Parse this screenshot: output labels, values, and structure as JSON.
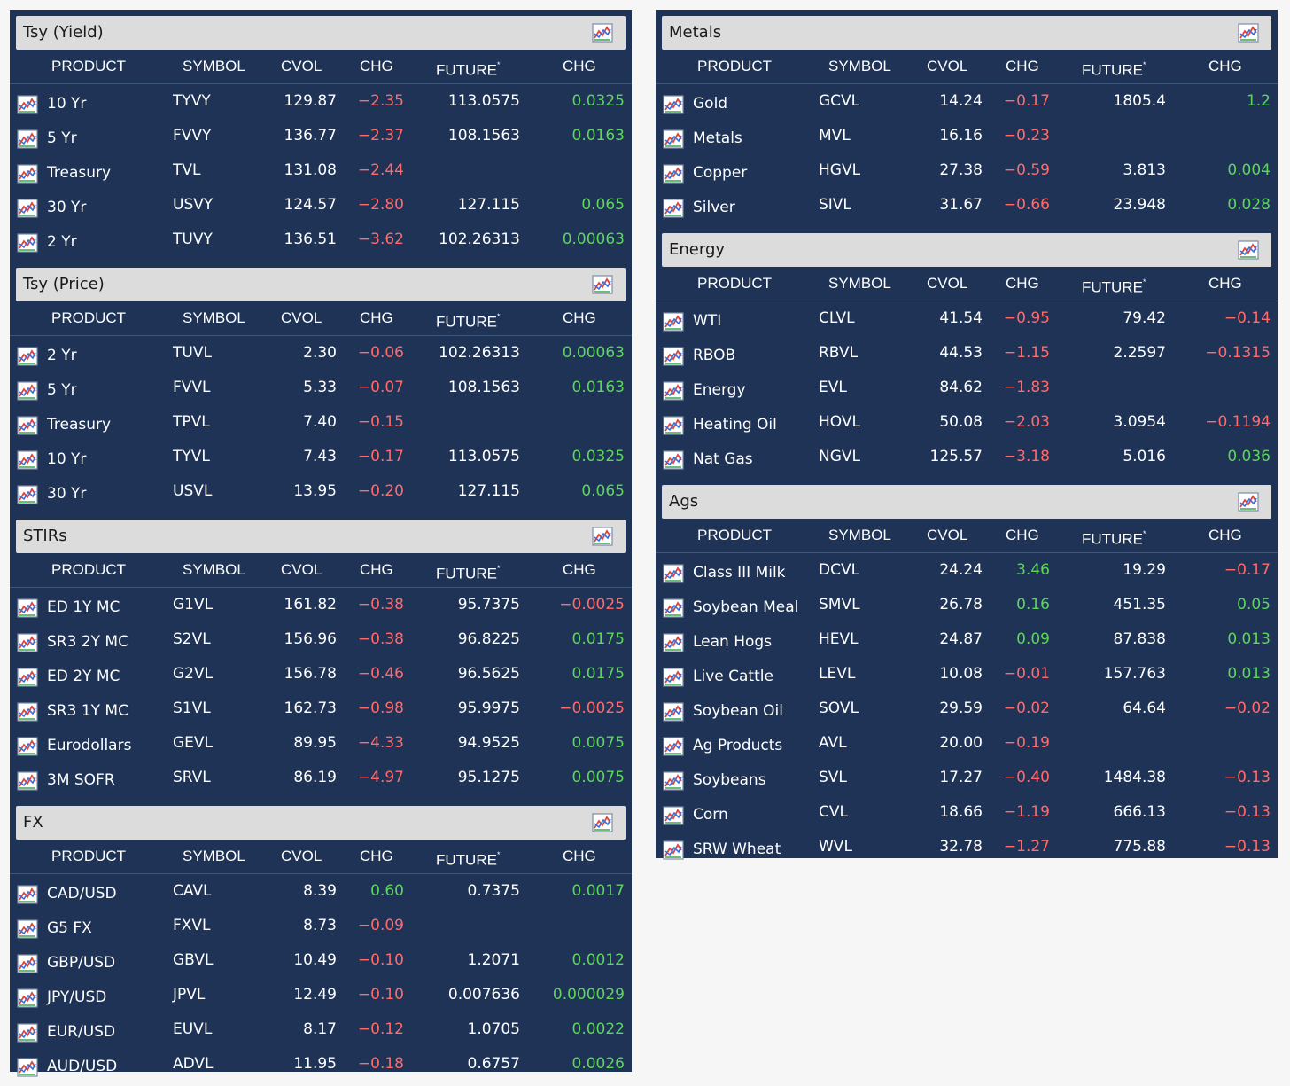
{
  "headers": {
    "product": "PRODUCT",
    "symbol": "SYMBOL",
    "cvol": "CVOL",
    "chg": "CHG",
    "future": "FUTURE",
    "future_mark": "*",
    "future_chg": "CHG"
  },
  "colors": {
    "panel": "#1e3356",
    "negative": "#ff6b6b",
    "positive": "#5fd45f",
    "section_bar": "#dcdcdc"
  },
  "icons": {
    "chart": "chart-icon"
  },
  "left_sections": [
    {
      "title": "Tsy (Yield)",
      "rows": [
        {
          "product": "10 Yr",
          "symbol": "TYVY",
          "cvol": "129.87",
          "chg": "−2.35",
          "future": "113.0575",
          "fchg": "0.0325"
        },
        {
          "product": "5 Yr",
          "symbol": "FVVY",
          "cvol": "136.77",
          "chg": "−2.37",
          "future": "108.1563",
          "fchg": "0.0163"
        },
        {
          "product": "Treasury",
          "symbol": "TVL",
          "cvol": "131.08",
          "chg": "−2.44",
          "future": "",
          "fchg": ""
        },
        {
          "product": "30 Yr",
          "symbol": "USVY",
          "cvol": "124.57",
          "chg": "−2.80",
          "future": "127.115",
          "fchg": "0.065"
        },
        {
          "product": "2 Yr",
          "symbol": "TUVY",
          "cvol": "136.51",
          "chg": "−3.62",
          "future": "102.26313",
          "fchg": "0.00063"
        }
      ]
    },
    {
      "title": "Tsy (Price)",
      "rows": [
        {
          "product": "2 Yr",
          "symbol": "TUVL",
          "cvol": "2.30",
          "chg": "−0.06",
          "future": "102.26313",
          "fchg": "0.00063"
        },
        {
          "product": "5 Yr",
          "symbol": "FVVL",
          "cvol": "5.33",
          "chg": "−0.07",
          "future": "108.1563",
          "fchg": "0.0163"
        },
        {
          "product": "Treasury",
          "symbol": "TPVL",
          "cvol": "7.40",
          "chg": "−0.15",
          "future": "",
          "fchg": ""
        },
        {
          "product": "10 Yr",
          "symbol": "TYVL",
          "cvol": "7.43",
          "chg": "−0.17",
          "future": "113.0575",
          "fchg": "0.0325"
        },
        {
          "product": "30 Yr",
          "symbol": "USVL",
          "cvol": "13.95",
          "chg": "−0.20",
          "future": "127.115",
          "fchg": "0.065"
        }
      ]
    },
    {
      "title": "STIRs",
      "rows": [
        {
          "product": "ED 1Y MC",
          "symbol": "G1VL",
          "cvol": "161.82",
          "chg": "−0.38",
          "future": "95.7375",
          "fchg": "−0.0025"
        },
        {
          "product": "SR3 2Y MC",
          "symbol": "S2VL",
          "cvol": "156.96",
          "chg": "−0.38",
          "future": "96.8225",
          "fchg": "0.0175"
        },
        {
          "product": "ED 2Y MC",
          "symbol": "G2VL",
          "cvol": "156.78",
          "chg": "−0.46",
          "future": "96.5625",
          "fchg": "0.0175"
        },
        {
          "product": "SR3 1Y MC",
          "symbol": "S1VL",
          "cvol": "162.73",
          "chg": "−0.98",
          "future": "95.9975",
          "fchg": "−0.0025"
        },
        {
          "product": "Eurodollars",
          "symbol": "GEVL",
          "cvol": "89.95",
          "chg": "−4.33",
          "future": "94.9525",
          "fchg": "0.0075"
        },
        {
          "product": "3M SOFR",
          "symbol": "SRVL",
          "cvol": "86.19",
          "chg": "−4.97",
          "future": "95.1275",
          "fchg": "0.0075"
        }
      ]
    },
    {
      "title": "FX",
      "rows": [
        {
          "product": "CAD/USD",
          "symbol": "CAVL",
          "cvol": "8.39",
          "chg": "0.60",
          "future": "0.7375",
          "fchg": "0.0017"
        },
        {
          "product": "G5 FX",
          "symbol": "FXVL",
          "cvol": "8.73",
          "chg": "−0.09",
          "future": "",
          "fchg": ""
        },
        {
          "product": "GBP/USD",
          "symbol": "GBVL",
          "cvol": "10.49",
          "chg": "−0.10",
          "future": "1.2071",
          "fchg": "0.0012"
        },
        {
          "product": "JPY/USD",
          "symbol": "JPVL",
          "cvol": "12.49",
          "chg": "−0.10",
          "future": "0.007636",
          "fchg": "0.000029"
        },
        {
          "product": "EUR/USD",
          "symbol": "EUVL",
          "cvol": "8.17",
          "chg": "−0.12",
          "future": "1.0705",
          "fchg": "0.0022"
        },
        {
          "product": "AUD/USD",
          "symbol": "ADVL",
          "cvol": "11.95",
          "chg": "−0.18",
          "future": "0.6757",
          "fchg": "0.0026"
        }
      ]
    }
  ],
  "right_sections": [
    {
      "title": "Metals",
      "rows": [
        {
          "product": "Gold",
          "symbol": "GCVL",
          "cvol": "14.24",
          "chg": "−0.17",
          "future": "1805.4",
          "fchg": "1.2"
        },
        {
          "product": "Metals",
          "symbol": "MVL",
          "cvol": "16.16",
          "chg": "−0.23",
          "future": "",
          "fchg": ""
        },
        {
          "product": "Copper",
          "symbol": "HGVL",
          "cvol": "27.38",
          "chg": "−0.59",
          "future": "3.813",
          "fchg": "0.004"
        },
        {
          "product": "Silver",
          "symbol": "SIVL",
          "cvol": "31.67",
          "chg": "−0.66",
          "future": "23.948",
          "fchg": "0.028"
        }
      ]
    },
    {
      "title": "Energy",
      "rows": [
        {
          "product": "WTI",
          "symbol": "CLVL",
          "cvol": "41.54",
          "chg": "−0.95",
          "future": "79.42",
          "fchg": "−0.14"
        },
        {
          "product": "RBOB",
          "symbol": "RBVL",
          "cvol": "44.53",
          "chg": "−1.15",
          "future": "2.2597",
          "fchg": "−0.1315"
        },
        {
          "product": "Energy",
          "symbol": "EVL",
          "cvol": "84.62",
          "chg": "−1.83",
          "future": "",
          "fchg": ""
        },
        {
          "product": "Heating Oil",
          "symbol": "HOVL",
          "cvol": "50.08",
          "chg": "−2.03",
          "future": "3.0954",
          "fchg": "−0.1194"
        },
        {
          "product": "Nat Gas",
          "symbol": "NGVL",
          "cvol": "125.57",
          "chg": "−3.18",
          "future": "5.016",
          "fchg": "0.036"
        }
      ]
    },
    {
      "title": "Ags",
      "rows": [
        {
          "product": "Class III Milk",
          "symbol": "DCVL",
          "cvol": "24.24",
          "chg": "3.46",
          "future": "19.29",
          "fchg": "−0.17"
        },
        {
          "product": "Soybean Meal",
          "symbol": "SMVL",
          "cvol": "26.78",
          "chg": "0.16",
          "future": "451.35",
          "fchg": "0.05"
        },
        {
          "product": "Lean Hogs",
          "symbol": "HEVL",
          "cvol": "24.87",
          "chg": "0.09",
          "future": "87.838",
          "fchg": "0.013"
        },
        {
          "product": "Live Cattle",
          "symbol": "LEVL",
          "cvol": "10.08",
          "chg": "−0.01",
          "future": "157.763",
          "fchg": "0.013"
        },
        {
          "product": "Soybean Oil",
          "symbol": "SOVL",
          "cvol": "29.59",
          "chg": "−0.02",
          "future": "64.64",
          "fchg": "−0.02"
        },
        {
          "product": "Ag Products",
          "symbol": "AVL",
          "cvol": "20.00",
          "chg": "−0.19",
          "future": "",
          "fchg": ""
        },
        {
          "product": "Soybeans",
          "symbol": "SVL",
          "cvol": "17.27",
          "chg": "−0.40",
          "future": "1484.38",
          "fchg": "−0.13"
        },
        {
          "product": "Corn",
          "symbol": "CVL",
          "cvol": "18.66",
          "chg": "−1.19",
          "future": "666.13",
          "fchg": "−0.13"
        },
        {
          "product": "SRW Wheat",
          "symbol": "WVL",
          "cvol": "32.78",
          "chg": "−1.27",
          "future": "775.88",
          "fchg": "−0.13"
        }
      ]
    }
  ]
}
